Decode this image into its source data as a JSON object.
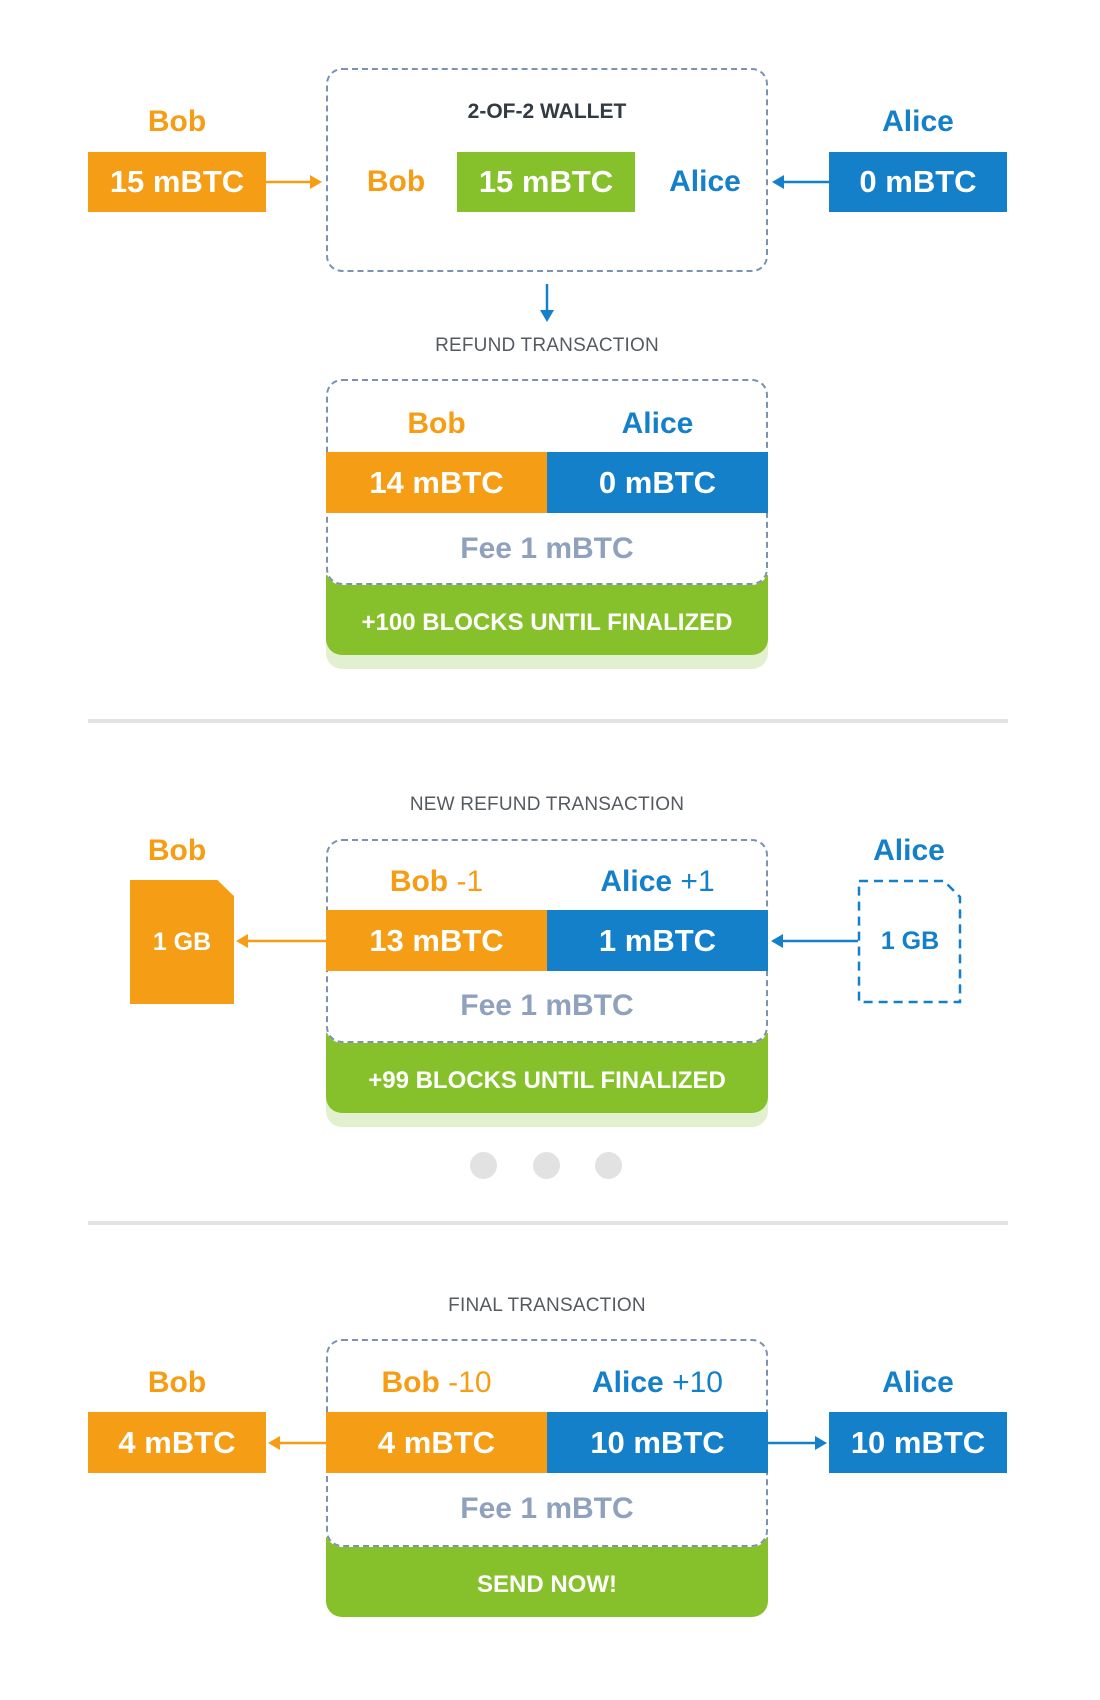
{
  "section1": {
    "bob_label": "Bob",
    "bob_amount": "15 mBTC",
    "alice_label": "Alice",
    "alice_amount": "0 mBTC",
    "wallet_title": "2-OF-2 WALLET",
    "wallet_bob": "Bob",
    "wallet_amount": "15 mBTC",
    "wallet_alice": "Alice",
    "caption": "REFUND TRANSACTION",
    "tx_bob": "Bob",
    "tx_alice": "Alice",
    "tx_bob_amount": "14 mBTC",
    "tx_alice_amount": "0 mBTC",
    "tx_fee": "Fee 1 mBTC",
    "tx_status": "+100 BLOCKS UNTIL FINALIZED"
  },
  "section2": {
    "caption": "NEW REFUND TRANSACTION",
    "bob_label": "Bob",
    "bob_file": "1 GB",
    "alice_label": "Alice",
    "alice_file": "1 GB",
    "tx_bob": "Bob",
    "tx_bob_delta": "-1",
    "tx_alice": "Alice",
    "tx_alice_delta": "+1",
    "tx_bob_amount": "13 mBTC",
    "tx_alice_amount": "1 mBTC",
    "tx_fee": "Fee 1 mBTC",
    "tx_status": "+99 BLOCKS UNTIL FINALIZED"
  },
  "section3": {
    "caption": "FINAL TRANSACTION",
    "bob_label": "Bob",
    "bob_amount": "4 mBTC",
    "alice_label": "Alice",
    "alice_amount": "10 mBTC",
    "tx_bob": "Bob",
    "tx_bob_delta": "-10",
    "tx_alice": "Alice",
    "tx_alice_delta": "+10",
    "tx_bob_amount": "4 mBTC",
    "tx_alice_amount": "10 mBTC",
    "tx_fee": "Fee 1 mBTC",
    "tx_status": "SEND NOW!"
  },
  "colors": {
    "bob": "#f59d15",
    "alice": "#1480c9",
    "wallet": "#86c02a",
    "fee_text": "#8fa1bd",
    "dashed_border": "#7d92b0"
  }
}
